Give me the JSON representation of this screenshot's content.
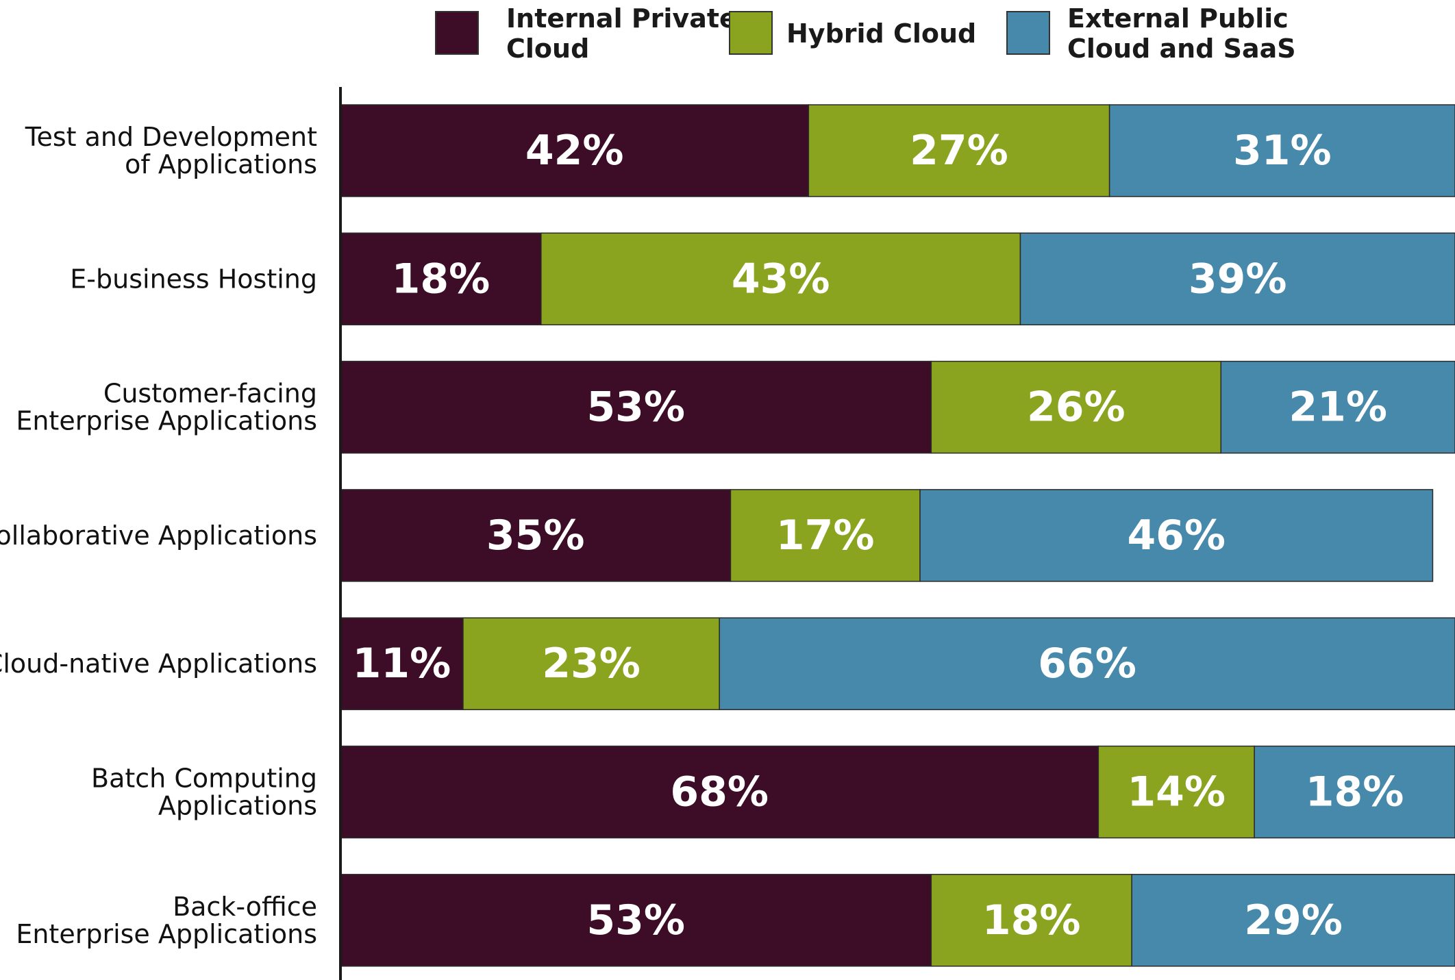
{
  "chart_data": {
    "type": "bar",
    "orientation": "horizontal",
    "stacked": true,
    "categories": [
      [
        "Test and Development",
        "of Applications"
      ],
      [
        "E-business Hosting"
      ],
      [
        "Customer-facing",
        "Enterprise Applications"
      ],
      [
        "Collaborative Applications"
      ],
      [
        "Cloud-native Applications"
      ],
      [
        "Batch Computing",
        "Applications"
      ],
      [
        "Back-office",
        "Enterprise Applications"
      ]
    ],
    "series": [
      {
        "name": "Internal Private Cloud",
        "legend_lines": [
          "Internal Private",
          "Cloud"
        ],
        "color": "#3d0c27",
        "values": [
          42,
          18,
          53,
          35,
          11,
          68,
          53
        ],
        "labels": [
          "42%",
          "18%",
          "53%",
          "35%",
          "11%",
          "68%",
          "53%"
        ]
      },
      {
        "name": "Hybrid Cloud",
        "legend_lines": [
          "Hybrid Cloud"
        ],
        "color": "#8ba41f",
        "values": [
          27,
          43,
          26,
          17,
          23,
          14,
          18
        ],
        "labels": [
          "27%",
          "43%",
          "26%",
          "17%",
          "23%",
          "14%",
          "18%"
        ]
      },
      {
        "name": "External Public Cloud and SaaS",
        "legend_lines": [
          "External Public",
          "Cloud and SaaS"
        ],
        "color": "#4689aa",
        "values": [
          31,
          39,
          21,
          46,
          66,
          18,
          29
        ],
        "labels": [
          "31%",
          "39%",
          "21%",
          "46%",
          "66%",
          "18%",
          "29%"
        ]
      }
    ],
    "xlim": [
      0,
      100
    ],
    "grid": false,
    "legend_position": "top"
  }
}
